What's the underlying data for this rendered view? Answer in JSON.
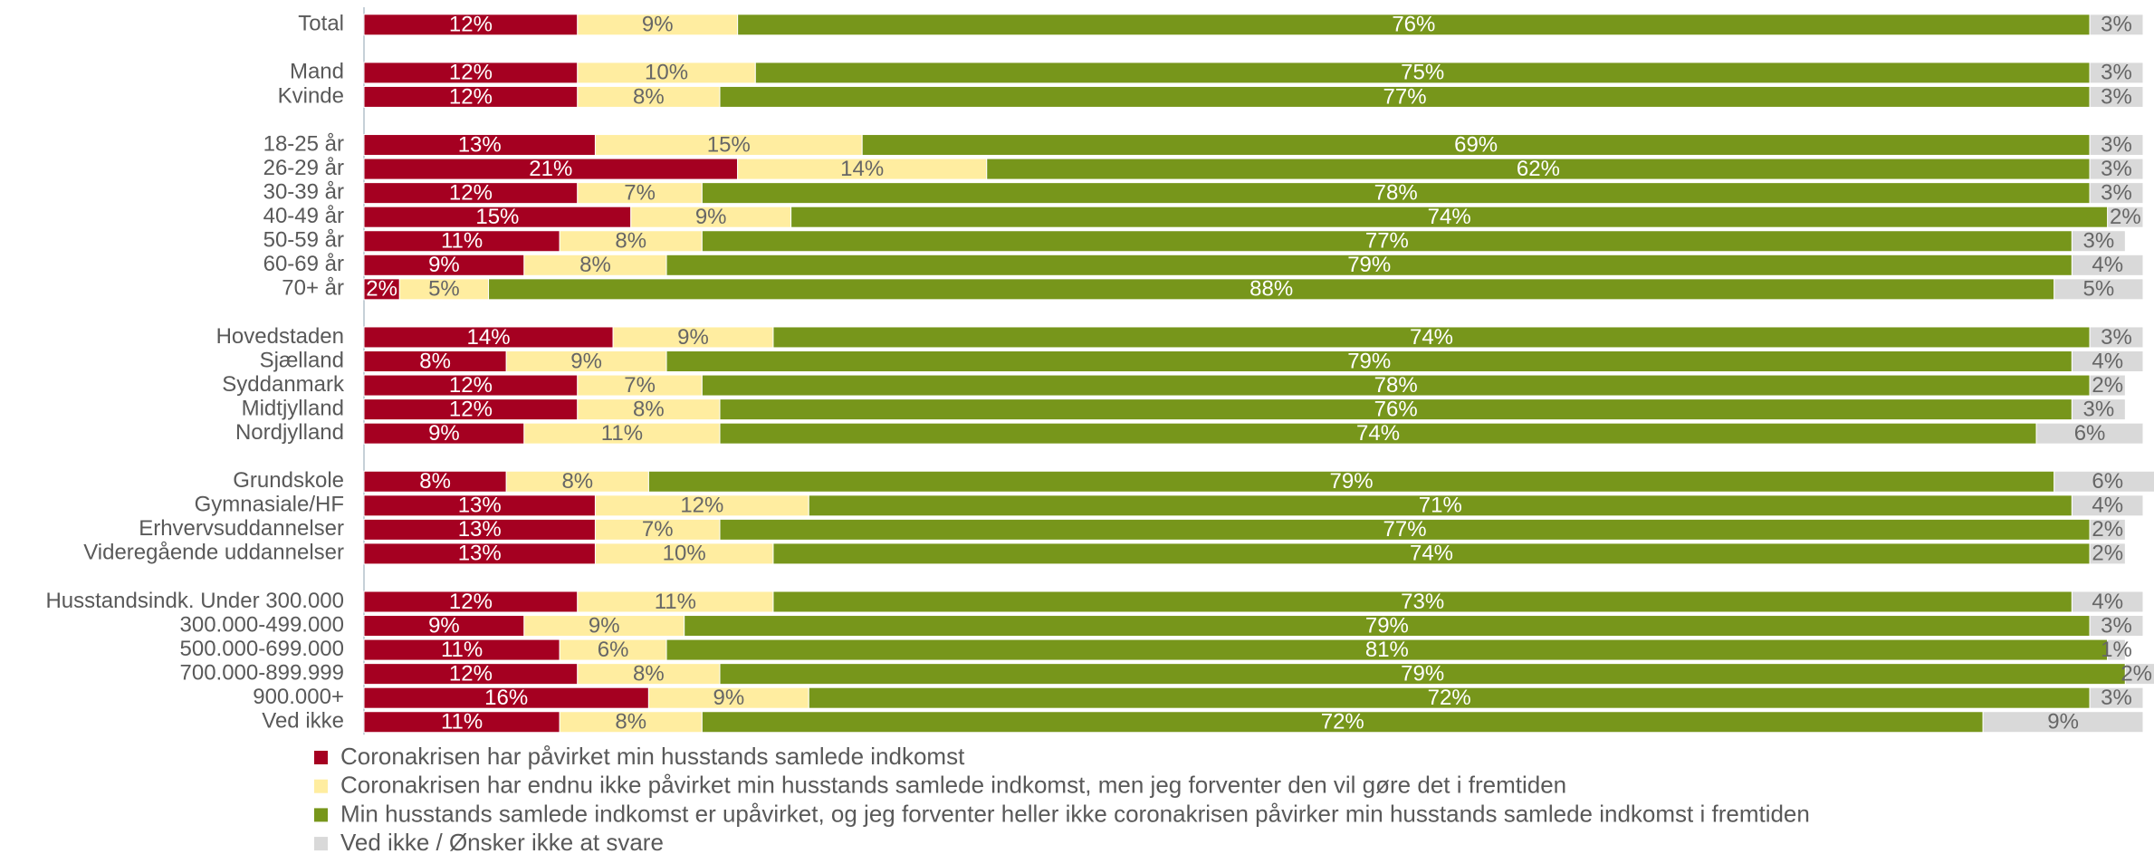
{
  "chart_data": {
    "type": "bar",
    "orientation": "horizontal",
    "stacked": true,
    "categories": [
      "Total",
      null,
      "Mand",
      "Kvinde",
      null,
      "18-25 år",
      "26-29 år",
      "30-39 år",
      "40-49 år",
      "50-59 år",
      "60-69 år",
      "70+ år",
      null,
      "Hovedstaden",
      "Sjælland",
      "Syddanmark",
      "Midtjylland",
      "Nordjylland",
      null,
      "Grundskole",
      "Gymnasiale/HF",
      "Erhvervsuddannelser",
      "Videregående uddannelser",
      null,
      "Husstandsindk. Under 300.000",
      "300.000-499.000",
      "500.000-699.000",
      "700.000-899.999",
      "900.000+",
      "Ved ikke"
    ],
    "series": [
      {
        "name": "Coronakrisen har påvirket min husstands samlede indkomst",
        "color": "#a50021",
        "values": [
          12,
          null,
          12,
          12,
          null,
          13,
          21,
          12,
          15,
          11,
          9,
          2,
          null,
          14,
          8,
          12,
          12,
          9,
          null,
          8,
          13,
          13,
          13,
          null,
          12,
          9,
          11,
          12,
          16,
          11
        ],
        "value_labels": [
          "12%",
          null,
          "12%",
          "12%",
          null,
          "13%",
          "21%",
          "12%",
          "15%",
          "11%",
          "9%",
          "2%",
          null,
          "14%",
          "8%",
          "12%",
          "12%",
          "9%",
          null,
          "8%",
          "13%",
          "13%",
          "13%",
          null,
          "12%",
          "9%",
          "11%",
          "12%",
          "16%",
          "11%"
        ]
      },
      {
        "name": "Coronakrisen har endnu ikke påvirket min husstands samlede indkomst, men jeg forventer den vil gøre det i fremtiden",
        "color": "#ffeda0",
        "values": [
          9,
          null,
          10,
          8,
          null,
          15,
          14,
          7,
          9,
          8,
          8,
          5,
          null,
          9,
          9,
          7,
          8,
          11,
          null,
          8,
          12,
          7,
          10,
          null,
          11,
          9,
          6,
          8,
          9,
          8
        ],
        "value_labels": [
          "9%",
          null,
          "10%",
          "8%",
          null,
          "15%",
          "14%",
          "7%",
          "9%",
          "8%",
          "8%",
          "5%",
          null,
          "9%",
          "9%",
          "7%",
          "8%",
          "11%",
          null,
          "8%",
          "12%",
          "7%",
          "10%",
          null,
          "11%",
          "9%",
          "6%",
          "8%",
          "9%",
          "8%"
        ]
      },
      {
        "name": "Min husstands samlede indkomst er upåvirket, og jeg forventer heller ikke coronakrisen påvirker min husstands samlede indkomst i fremtiden",
        "color": "#77961b",
        "values": [
          76,
          null,
          75,
          77,
          null,
          69,
          62,
          78,
          74,
          77,
          79,
          88,
          null,
          74,
          79,
          78,
          76,
          74,
          null,
          79,
          71,
          77,
          74,
          null,
          73,
          79,
          81,
          79,
          72,
          72
        ],
        "value_labels": [
          "76%",
          null,
          "75%",
          "77%",
          null,
          "69%",
          "62%",
          "78%",
          "74%",
          "77%",
          "79%",
          "88%",
          null,
          "74%",
          "79%",
          "78%",
          "76%",
          "74%",
          null,
          "79%",
          "71%",
          "77%",
          "74%",
          null,
          "73%",
          "79%",
          "81%",
          "79%",
          "72%",
          "72%"
        ]
      },
      {
        "name": "Ved ikke / Ønsker ikke at svare",
        "color": "#d9d9d9",
        "values": [
          3,
          null,
          3,
          3,
          null,
          3,
          3,
          3,
          2,
          3,
          4,
          5,
          null,
          3,
          4,
          2,
          3,
          6,
          null,
          6,
          4,
          2,
          2,
          null,
          4,
          3,
          1,
          2,
          3,
          9
        ],
        "value_labels": [
          "3%",
          null,
          "3%",
          "3%",
          null,
          "3%",
          "3%",
          "3%",
          "2%",
          "3%",
          "4%",
          "5%",
          null,
          "3%",
          "4%",
          "2%",
          "3%",
          "6%",
          null,
          "6%",
          "4%",
          "2%",
          "2%",
          null,
          "4%",
          "3%",
          "1%",
          "2%",
          "3%",
          "9%"
        ]
      }
    ]
  }
}
